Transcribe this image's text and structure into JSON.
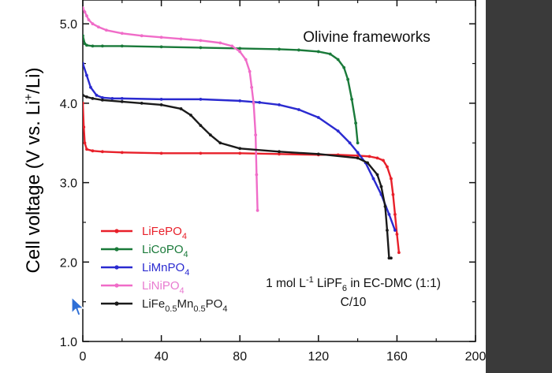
{
  "chart_data": {
    "type": "line",
    "title": "Olivine frameworks",
    "ylabel_parts": [
      "Cell voltage (V vs. Li",
      "+",
      "/Li)"
    ],
    "xlim": [
      0,
      200
    ],
    "ylim": [
      1.0,
      5.3
    ],
    "x_ticks": [
      "0",
      "40",
      "80",
      "120",
      "160",
      "200"
    ],
    "x_tick_values": [
      0,
      40,
      80,
      120,
      160,
      200
    ],
    "y_ticks": [
      "1.0",
      "2.0",
      "3.0",
      "4.0",
      "5.0"
    ],
    "y_tick_values": [
      1.0,
      2.0,
      3.0,
      4.0,
      5.0
    ],
    "grid": false,
    "legend_position": "lower-left",
    "annotation": {
      "line1": [
        {
          "t": "1 mol L",
          "s": "n"
        },
        {
          "t": "-1",
          "s": "sup"
        },
        {
          "t": " LiPF",
          "s": "n"
        },
        {
          "t": "6",
          "s": "sub"
        },
        {
          "t": " in EC-DMC (1:1)",
          "s": "n"
        }
      ],
      "line2": "C/10"
    },
    "series": [
      {
        "name": "LiFePO4",
        "name_parts": [
          {
            "t": "LiFePO",
            "s": "n"
          },
          {
            "t": "4",
            "s": "sub"
          }
        ],
        "color": "#e8202a",
        "x": [
          0,
          0.5,
          1,
          2,
          5,
          10,
          20,
          40,
          60,
          80,
          100,
          120,
          130,
          140,
          146,
          150,
          153,
          155,
          157,
          158,
          159,
          160,
          161
        ],
        "y": [
          4.0,
          3.7,
          3.5,
          3.42,
          3.4,
          3.39,
          3.38,
          3.37,
          3.37,
          3.37,
          3.36,
          3.35,
          3.35,
          3.34,
          3.33,
          3.31,
          3.28,
          3.2,
          3.05,
          2.85,
          2.6,
          2.35,
          2.12
        ]
      },
      {
        "name": "LiCoPO4",
        "name_parts": [
          {
            "t": "LiCoPO",
            "s": "n"
          },
          {
            "t": "4",
            "s": "sub"
          }
        ],
        "color": "#1a7a3a",
        "x": [
          0,
          1,
          2,
          5,
          10,
          20,
          40,
          60,
          80,
          100,
          110,
          120,
          126,
          130,
          133,
          135,
          137,
          139,
          140
        ],
        "y": [
          4.85,
          4.75,
          4.73,
          4.72,
          4.72,
          4.72,
          4.71,
          4.7,
          4.69,
          4.68,
          4.67,
          4.65,
          4.62,
          4.55,
          4.45,
          4.3,
          4.05,
          3.75,
          3.5
        ]
      },
      {
        "name": "LiMnPO4",
        "name_parts": [
          {
            "t": "LiMnPO",
            "s": "n"
          },
          {
            "t": "4",
            "s": "sub"
          }
        ],
        "color": "#2a2ad0",
        "x": [
          0,
          2,
          4,
          7,
          10,
          15,
          20,
          40,
          60,
          80,
          90,
          100,
          110,
          120,
          130,
          136,
          140,
          144,
          148,
          152,
          156,
          159
        ],
        "y": [
          4.5,
          4.35,
          4.2,
          4.1,
          4.07,
          4.06,
          4.06,
          4.05,
          4.05,
          4.03,
          4.01,
          3.98,
          3.92,
          3.82,
          3.65,
          3.5,
          3.38,
          3.25,
          3.05,
          2.85,
          2.6,
          2.4
        ]
      },
      {
        "name": "LiNiPO4",
        "name_parts": [
          {
            "t": "LiNiPO",
            "s": "n"
          },
          {
            "t": "4",
            "s": "sub"
          }
        ],
        "color": "#f06cc8",
        "x": [
          0,
          1,
          2,
          3,
          5,
          8,
          12,
          20,
          30,
          40,
          50,
          60,
          70,
          76,
          80,
          83,
          85,
          86,
          87,
          88,
          88.5,
          89
        ],
        "y": [
          5.2,
          5.15,
          5.1,
          5.05,
          5.0,
          4.96,
          4.92,
          4.88,
          4.85,
          4.83,
          4.81,
          4.79,
          4.76,
          4.72,
          4.65,
          4.55,
          4.4,
          4.2,
          4.0,
          3.6,
          3.1,
          2.65
        ]
      },
      {
        "name": "LiFe0.5Mn0.5PO4",
        "name_parts": [
          {
            "t": "LiFe",
            "s": "n"
          },
          {
            "t": "0.5",
            "s": "sub"
          },
          {
            "t": "Mn",
            "s": "n"
          },
          {
            "t": "0.5",
            "s": "sub"
          },
          {
            "t": "PO",
            "s": "n"
          },
          {
            "t": "4",
            "s": "sub"
          }
        ],
        "color": "#1a1a1a",
        "x": [
          0,
          2,
          5,
          10,
          20,
          30,
          40,
          50,
          55,
          60,
          65,
          70,
          80,
          100,
          120,
          140,
          145,
          150,
          152,
          154,
          155,
          156,
          157
        ],
        "y": [
          4.1,
          4.08,
          4.06,
          4.04,
          4.02,
          4.0,
          3.98,
          3.93,
          3.85,
          3.72,
          3.6,
          3.5,
          3.43,
          3.39,
          3.36,
          3.31,
          3.25,
          3.1,
          2.95,
          2.7,
          2.4,
          2.05,
          2.05
        ]
      }
    ]
  }
}
